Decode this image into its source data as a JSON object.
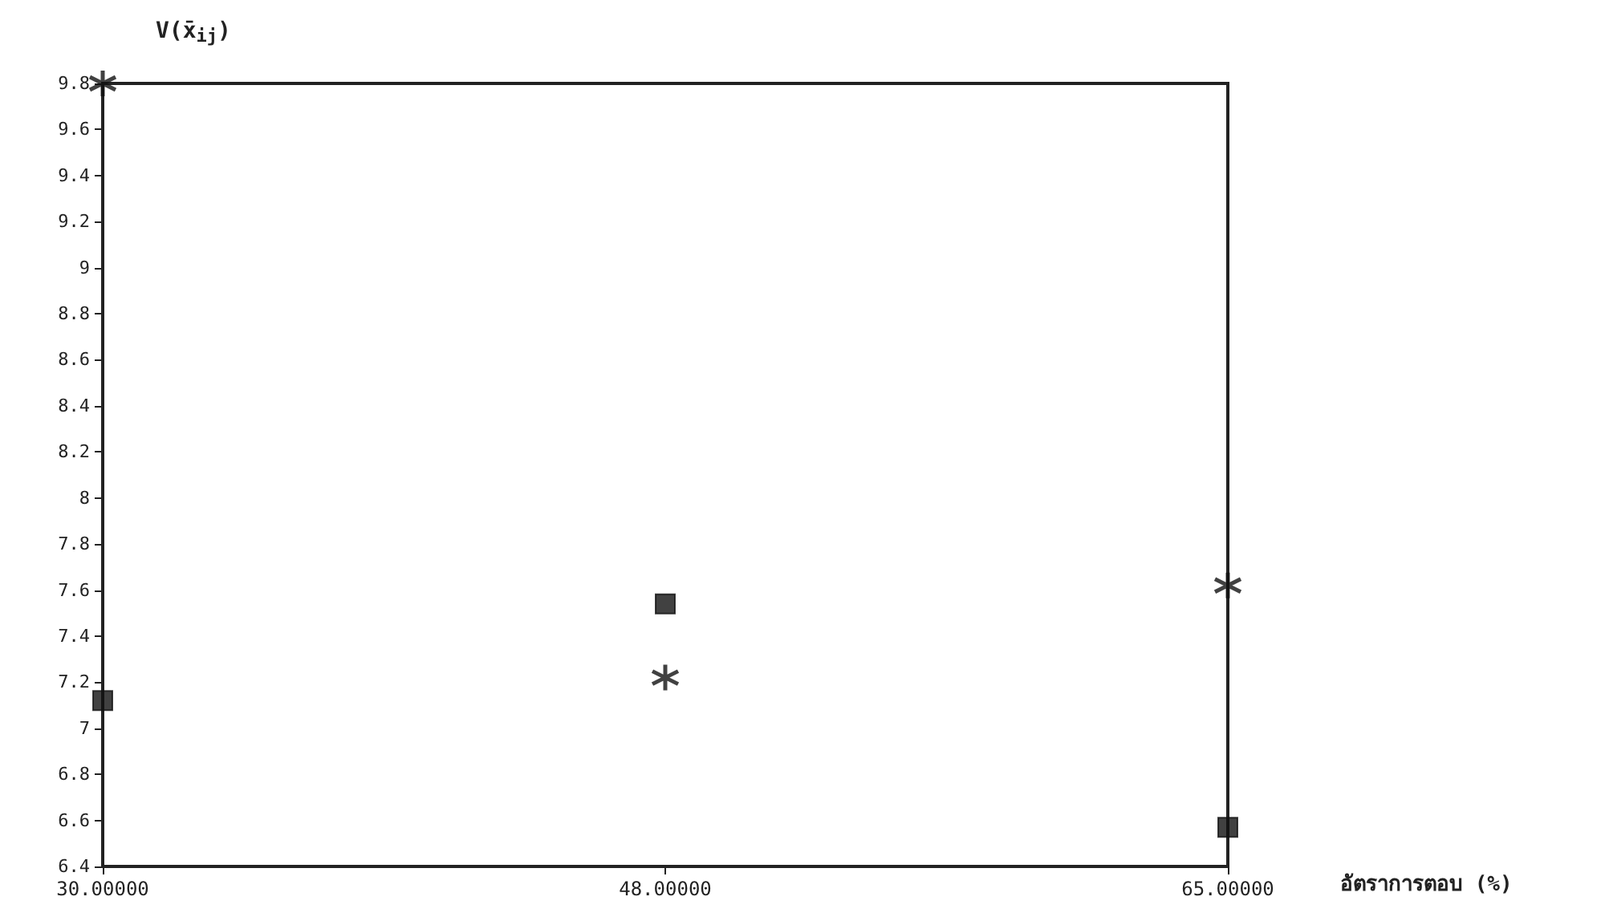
{
  "chart_data": {
    "type": "scatter",
    "xlabel": "อัตราการตอบ (%)",
    "ylabel": "V(x̄$_{ij}$)",
    "categories": [
      "30.00000",
      "48.00000",
      "65.00000"
    ],
    "series": [
      {
        "color": "#111111",
        "marker": "cross",
        "values": [
          9.8,
          7.22,
          7.62
        ]
      },
      {
        "color": "#111111",
        "marker": "square",
        "values": [
          7.12,
          7.54,
          6.57
        ]
      }
    ],
    "ylim": [
      6.4,
      9.8
    ],
    "yticks": [
      6.4,
      6.6,
      6.8,
      7,
      7.2,
      7.4,
      7.6,
      7.8,
      8,
      8.2,
      8.4,
      8.6,
      8.8,
      9,
      9.2,
      9.4,
      9.6,
      9.8
    ],
    "grid": false
  }
}
